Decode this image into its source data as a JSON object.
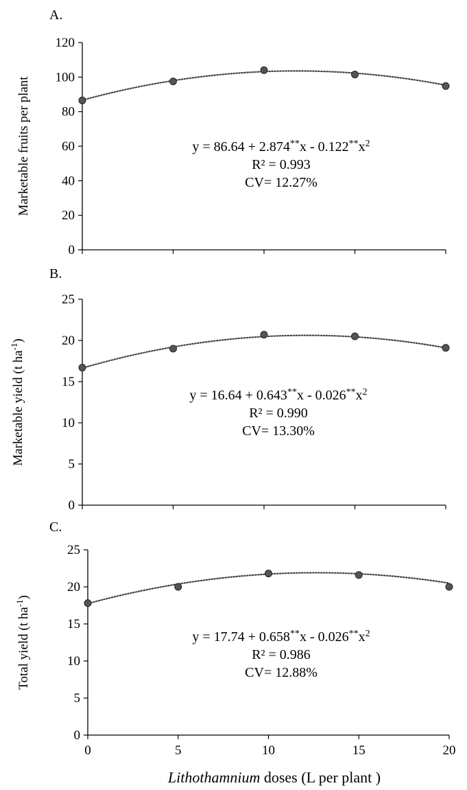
{
  "chart_data": [
    {
      "type": "scatter",
      "panel_label": "A.",
      "ylabel_main": "Marketable  fruits  per plant",
      "ylabel_unit_base": "",
      "ylabel_unit_sup": "",
      "ylabel_unit_end": "",
      "ylim": [
        0,
        120
      ],
      "yticks": [
        0,
        20,
        40,
        60,
        80,
        100,
        120
      ],
      "xlim": [
        0,
        20
      ],
      "xticks": [
        0,
        5,
        10,
        15,
        20
      ],
      "x": [
        0,
        5,
        10,
        15,
        20
      ],
      "y": [
        86.5,
        97.5,
        104,
        101.5,
        94.8
      ],
      "fit": {
        "type": "quadratic",
        "a": 86.64,
        "b": 2.874,
        "c": -0.122,
        "style": "dotted"
      },
      "equation": {
        "lead": "y = 86.64 + 2.874",
        "sup1": "**",
        "mid": "x - 0.122",
        "sup2": "**",
        "tail": "x",
        "sup3": "2",
        "r2": "R² = 0.993",
        "cv": "CV= 12.27%"
      },
      "show_x_tick_labels": false
    },
    {
      "type": "scatter",
      "panel_label": "B.",
      "ylabel_main": "Marketable  yield  (t ha",
      "ylabel_unit_base": "",
      "ylabel_unit_sup": "-1",
      "ylabel_unit_end": ")",
      "ylim": [
        0,
        25
      ],
      "yticks": [
        0,
        5,
        10,
        15,
        20,
        25
      ],
      "xlim": [
        0,
        20
      ],
      "xticks": [
        0,
        5,
        10,
        15,
        20
      ],
      "x": [
        0,
        5,
        10,
        15,
        20
      ],
      "y": [
        16.7,
        19.0,
        20.7,
        20.5,
        19.1
      ],
      "fit": {
        "type": "quadratic",
        "a": 16.64,
        "b": 0.643,
        "c": -0.026,
        "style": "dotted"
      },
      "equation": {
        "lead": "y = 16.64 + 0.643",
        "sup1": "**",
        "mid": "x - 0.026",
        "sup2": "**",
        "tail": "x",
        "sup3": "2",
        "r2": "R² = 0.990",
        "cv": "CV= 13.30%"
      },
      "show_x_tick_labels": false
    },
    {
      "type": "scatter",
      "panel_label": "C.",
      "ylabel_main": "Total yield  (t ha",
      "ylabel_unit_base": "",
      "ylabel_unit_sup": "-1",
      "ylabel_unit_end": ")",
      "ylim": [
        0,
        25
      ],
      "yticks": [
        0,
        5,
        10,
        15,
        20,
        25
      ],
      "xlim": [
        0,
        20
      ],
      "xticks": [
        0,
        5,
        10,
        15,
        20
      ],
      "x": [
        0,
        5,
        10,
        15,
        20
      ],
      "y": [
        17.8,
        20.0,
        21.8,
        21.6,
        20.0
      ],
      "fit": {
        "type": "quadratic",
        "a": 17.74,
        "b": 0.658,
        "c": -0.026,
        "style": "dotted"
      },
      "equation": {
        "lead": "y = 17.74 + 0.658",
        "sup1": "**",
        "mid": "x - 0.026",
        "sup2": "**",
        "tail": "x",
        "sup3": "2",
        "r2": "R² = 0.986",
        "cv": "CV= 12.88%"
      },
      "show_x_tick_labels": true
    }
  ],
  "xlabel": {
    "italic": "Lithothamnium",
    "rest": " doses (L per plant )"
  },
  "colors": {
    "marker_fill": "#555555",
    "marker_stroke": "#222222",
    "line": "#444444",
    "axis": "#000000"
  }
}
